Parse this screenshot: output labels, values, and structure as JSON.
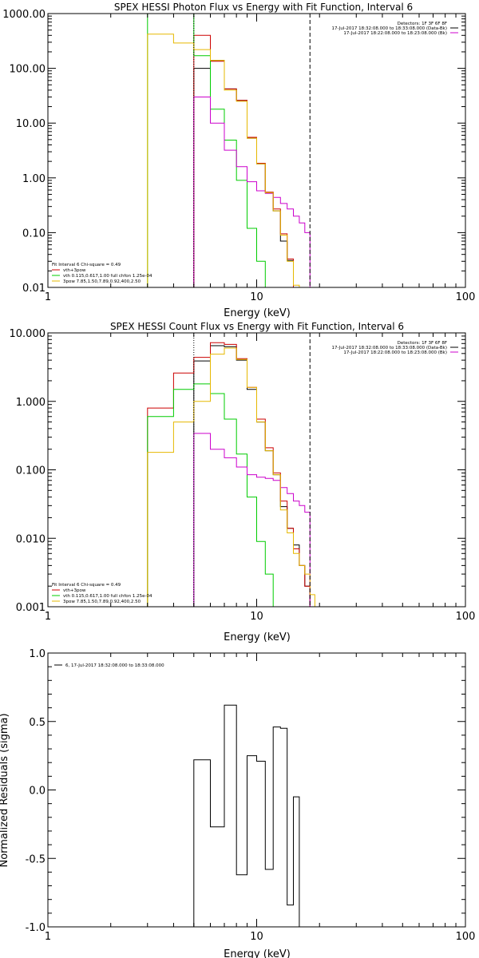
{
  "chart_data": [
    {
      "type": "line",
      "title": "SPEX HESSI Photon Flux vs Energy with Fit Function, Interval 6",
      "xlabel": "Energy (keV)",
      "ylabel": "",
      "xscale": "log",
      "yscale": "log",
      "xlim": [
        1,
        100
      ],
      "ylim": [
        0.01,
        1000
      ],
      "xtick_labels": [
        "1",
        "10",
        "100"
      ],
      "ytick_labels": [
        "0.01",
        "0.10",
        "1.00",
        "10.00",
        "100.00",
        "1000.00"
      ],
      "grid": false,
      "fit_interval_label": "Fit Interval 6   Chi-square = 0.49",
      "legend": [
        {
          "label": "vth+3pow",
          "color": "#cc0000"
        },
        {
          "label": "vth 0.115,0.617,1.00  full chfon 1.25e-04",
          "color": "#00cc00"
        },
        {
          "label": "3pow 7.85,1.50,7.89,0.92,400,2.50",
          "color": "#e6b800"
        }
      ],
      "detector_text": [
        "Detectors: 1F 3F 6F 8F",
        "17-Jul-2017 18:32:08.000 to 18:33:08.000 (Data-Bk)",
        "17-Jul-2017 18:22:08.000 to 18:23:08.000 (Bk)"
      ],
      "vlines": [
        {
          "x": 5.0,
          "style": "dotted"
        },
        {
          "x": 18.0,
          "style": "dashed"
        }
      ],
      "series": [
        {
          "name": "Data-Bk",
          "color": "#000000",
          "edges": [
            5,
            6,
            7,
            8,
            9,
            10,
            11,
            12,
            13,
            14,
            15,
            16,
            17,
            18
          ],
          "values": [
            100,
            140,
            42,
            26,
            5.3,
            1.8,
            0.54,
            0.25,
            0.07,
            0.031,
            null,
            null,
            null
          ]
        },
        {
          "name": "vth+3pow",
          "color": "#cc0000",
          "edges": [
            5,
            6,
            7,
            8,
            9,
            10,
            11,
            12,
            13,
            14,
            15,
            16,
            17,
            18
          ],
          "values": [
            400,
            135,
            42,
            26,
            5.5,
            1.85,
            0.55,
            0.27,
            0.095,
            0.033,
            null,
            null,
            null
          ]
        },
        {
          "name": "vth",
          "color": "#00cc00",
          "edges": [
            3,
            4,
            5,
            6,
            7,
            8,
            9,
            10,
            11,
            12
          ],
          "values": [
            1000,
            1000,
            170,
            18,
            4.9,
            0.9,
            0.12,
            0.03,
            null
          ]
        },
        {
          "name": "Bk",
          "color": "#cc00cc",
          "edges": [
            5,
            6,
            7,
            8,
            9,
            10,
            11,
            12,
            13,
            14,
            15,
            16,
            17,
            18
          ],
          "values": [
            30,
            10,
            3.2,
            1.6,
            0.85,
            0.58,
            0.52,
            0.44,
            0.34,
            0.27,
            0.2,
            0.15,
            0.1
          ]
        },
        {
          "name": "3pow",
          "color": "#e6b800",
          "edges": [
            3,
            4,
            5,
            6,
            7,
            8,
            9,
            10,
            11,
            12,
            13,
            14,
            15,
            16,
            17,
            18,
            19,
            20
          ],
          "values": [
            420,
            290,
            220,
            140,
            40,
            25,
            5.3,
            1.8,
            0.54,
            0.25,
            0.09,
            0.03,
            0.011,
            0.005,
            null,
            null,
            null
          ]
        }
      ]
    },
    {
      "type": "line",
      "title": "SPEX HESSI Count Flux vs Energy with Fit Function, Interval 6",
      "xlabel": "Energy (keV)",
      "ylabel": "",
      "xscale": "log",
      "yscale": "log",
      "xlim": [
        1,
        100
      ],
      "ylim": [
        0.001,
        10
      ],
      "xtick_labels": [
        "1",
        "10",
        "100"
      ],
      "ytick_labels": [
        "0.001",
        "0.010",
        "0.100",
        "1.000",
        "10.000"
      ],
      "grid": false,
      "fit_interval_label": "Fit Interval 6   Chi-square = 0.49",
      "legend": [
        {
          "label": "vth+3pow",
          "color": "#cc0000"
        },
        {
          "label": "vth 0.115,0.617,1.00  full chfon 1.25e-04",
          "color": "#00cc00"
        },
        {
          "label": "3pow 7.85,1.50,7.89,0.92,400,2.50",
          "color": "#e6b800"
        }
      ],
      "detector_text": [
        "Detectors: 1F 3F 6F 8F",
        "17-Jul-2017 18:32:08.000 to 18:33:08.000 (Data-Bk)",
        "17-Jul-2017 18:22:08.000 to 18:23:08.000 (Bk)"
      ],
      "vlines": [
        {
          "x": 5.0,
          "style": "dotted"
        },
        {
          "x": 18.0,
          "style": "dashed"
        }
      ],
      "series": [
        {
          "name": "Data-Bk",
          "color": "#000000",
          "edges": [
            5,
            6,
            7,
            8,
            9,
            10,
            11,
            12,
            13,
            14,
            15,
            16,
            17,
            18
          ],
          "values": [
            3.9,
            6.5,
            6.3,
            4.0,
            1.5,
            0.5,
            0.19,
            0.085,
            0.029,
            0.014,
            0.008,
            0.004,
            0.002
          ]
        },
        {
          "name": "vth+3pow",
          "color": "#cc0000",
          "edges": [
            3,
            4,
            5,
            6,
            7,
            8,
            9,
            10,
            11,
            12,
            13,
            14,
            15,
            16,
            17,
            18
          ],
          "values": [
            0.8,
            2.6,
            4.4,
            7.2,
            6.8,
            4.2,
            1.6,
            0.55,
            0.21,
            0.09,
            0.035,
            0.014,
            0.007,
            0.004,
            0.002
          ]
        },
        {
          "name": "vth",
          "color": "#00cc00",
          "edges": [
            3,
            4,
            5,
            6,
            7,
            8,
            9,
            10,
            11,
            12
          ],
          "values": [
            0.6,
            1.5,
            1.8,
            1.3,
            0.55,
            0.17,
            0.04,
            0.009,
            0.003
          ]
        },
        {
          "name": "Bk",
          "color": "#cc00cc",
          "edges": [
            5,
            6,
            7,
            8,
            9,
            10,
            11,
            12,
            13,
            14,
            15,
            16,
            17,
            18
          ],
          "values": [
            0.34,
            0.2,
            0.15,
            0.11,
            0.085,
            0.078,
            0.075,
            0.07,
            0.055,
            0.045,
            0.035,
            0.03,
            0.024
          ]
        },
        {
          "name": "3pow",
          "color": "#e6b800",
          "edges": [
            3,
            4,
            5,
            6,
            7,
            8,
            9,
            10,
            11,
            12,
            13,
            14,
            15,
            16,
            17,
            18,
            19,
            20
          ],
          "values": [
            0.18,
            0.5,
            1.0,
            4.9,
            6.0,
            4.1,
            1.6,
            0.5,
            0.19,
            0.085,
            0.026,
            0.012,
            0.006,
            0.004,
            0.003,
            0.0015,
            0.001
          ]
        }
      ]
    },
    {
      "type": "line",
      "title": "",
      "xlabel": "Energy (keV)",
      "ylabel": "Normalized Residuals (sigma)",
      "xscale": "log",
      "yscale": "linear",
      "xlim": [
        1,
        100
      ],
      "ylim": [
        -1.0,
        1.0
      ],
      "xtick_labels": [
        "1",
        "10",
        "100"
      ],
      "ytick_labels": [
        "-1.0",
        "-0.5",
        "0.0",
        "0.5",
        "1.0"
      ],
      "grid": false,
      "legend": [
        {
          "label": "6, 17-Jul-2017 18:32:08.000 to 18:33:08.000",
          "color": "#000000"
        }
      ],
      "series": [
        {
          "name": "6, 17-Jul-2017 18:32:08.000 to 18:33:08.000",
          "color": "#000000",
          "edges": [
            5,
            6,
            7,
            8,
            9,
            10,
            11,
            12,
            13,
            14,
            15,
            16,
            17,
            18
          ],
          "values": [
            0.22,
            -0.27,
            0.62,
            -0.62,
            0.25,
            0.21,
            -0.58,
            0.46,
            0.45,
            -0.84,
            -0.05,
            null,
            null
          ]
        }
      ]
    }
  ]
}
